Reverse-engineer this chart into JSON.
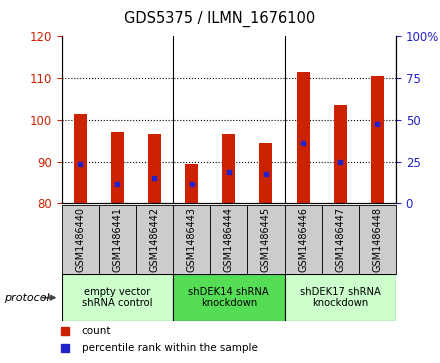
{
  "title": "GDS5375 / ILMN_1676100",
  "samples": [
    "GSM1486440",
    "GSM1486441",
    "GSM1486442",
    "GSM1486443",
    "GSM1486444",
    "GSM1486445",
    "GSM1486446",
    "GSM1486447",
    "GSM1486448"
  ],
  "count_values": [
    101.5,
    97.0,
    96.5,
    89.5,
    96.5,
    94.5,
    111.5,
    103.5,
    110.5
  ],
  "percentile_values": [
    89.5,
    84.5,
    86.0,
    84.5,
    87.5,
    87.0,
    94.5,
    90.0,
    99.0
  ],
  "bar_bottom": 80,
  "ylim_left": [
    80,
    120
  ],
  "ylim_right": [
    0,
    100
  ],
  "yticks_left": [
    80,
    90,
    100,
    110,
    120
  ],
  "yticks_right": [
    0,
    25,
    50,
    75,
    100
  ],
  "bar_color": "#cc2200",
  "percentile_color": "#2222cc",
  "groups": [
    {
      "label": "empty vector\nshRNA control",
      "start": 0,
      "end": 3,
      "color": "#ccffcc"
    },
    {
      "label": "shDEK14 shRNA\nknockdown",
      "start": 3,
      "end": 6,
      "color": "#55dd55"
    },
    {
      "label": "shDEK17 shRNA\nknockdown",
      "start": 6,
      "end": 9,
      "color": "#ccffcc"
    }
  ],
  "sample_box_color": "#cccccc",
  "background_color": "#ffffff",
  "tick_label_color_left": "#cc2200",
  "tick_label_color_right": "#2222cc",
  "bar_width": 0.35,
  "protocol_label": "protocol",
  "legend_items": [
    {
      "label": "count",
      "color": "#cc2200"
    },
    {
      "label": "percentile rank within the sample",
      "color": "#2222cc"
    }
  ]
}
